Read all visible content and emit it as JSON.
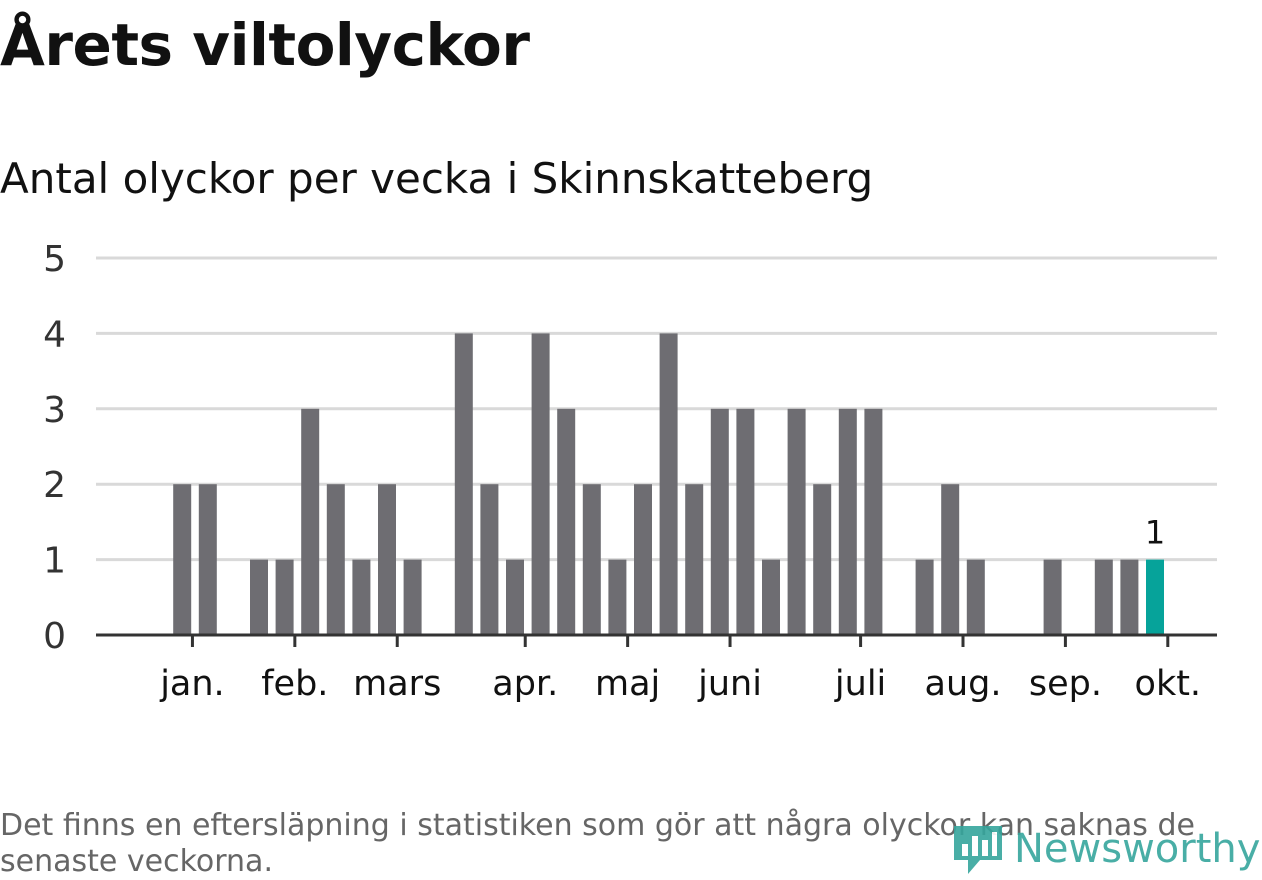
{
  "header": {
    "title": "Årets viltolyckor",
    "subtitle": "Antal olyckor per vecka i Skinnskatteberg"
  },
  "footer": {
    "note": "Det finns en eftersläpning i statistiken som gör att några olyckor kan saknas de senaste veckorna.",
    "brand": "Newsworthy"
  },
  "colors": {
    "bar": "#6e6d72",
    "highlight": "#06a39a",
    "grid": "#d9d9d9",
    "axis": "#333333",
    "brand": "#36a69d"
  },
  "chart_data": {
    "type": "bar",
    "title": "Antal olyckor per vecka i Skinnskatteberg",
    "xlabel": "",
    "ylabel": "",
    "ylim": [
      0,
      5
    ],
    "yticks": [
      0,
      1,
      2,
      3,
      4,
      5
    ],
    "grid": true,
    "weeks": [
      1,
      2,
      3,
      4,
      5,
      6,
      7,
      8,
      9,
      10,
      11,
      12,
      13,
      14,
      15,
      16,
      17,
      18,
      19,
      20,
      21,
      22,
      23,
      24,
      25,
      26,
      27,
      28,
      29,
      30,
      31,
      32,
      33,
      34,
      35,
      36,
      37,
      38,
      39,
      40,
      41
    ],
    "values": [
      0,
      0,
      2,
      2,
      0,
      1,
      1,
      3,
      2,
      1,
      2,
      1,
      0,
      4,
      2,
      1,
      4,
      3,
      2,
      1,
      2,
      4,
      2,
      3,
      3,
      1,
      3,
      2,
      3,
      3,
      0,
      1,
      2,
      1,
      0,
      0,
      1,
      0,
      1,
      1,
      1
    ],
    "highlight": {
      "week": 41,
      "value": 1,
      "label": "1"
    },
    "month_ticks": [
      {
        "label": "jan.",
        "week": 3.4
      },
      {
        "label": "feb.",
        "week": 7.4
      },
      {
        "label": "mars",
        "week": 11.4
      },
      {
        "label": "apr.",
        "week": 16.4
      },
      {
        "label": "maj",
        "week": 20.4
      },
      {
        "label": "juni",
        "week": 24.4
      },
      {
        "label": "juli",
        "week": 29.5
      },
      {
        "label": "aug.",
        "week": 33.5
      },
      {
        "label": "sep.",
        "week": 37.5
      },
      {
        "label": "okt.",
        "week": 41.5
      }
    ]
  }
}
